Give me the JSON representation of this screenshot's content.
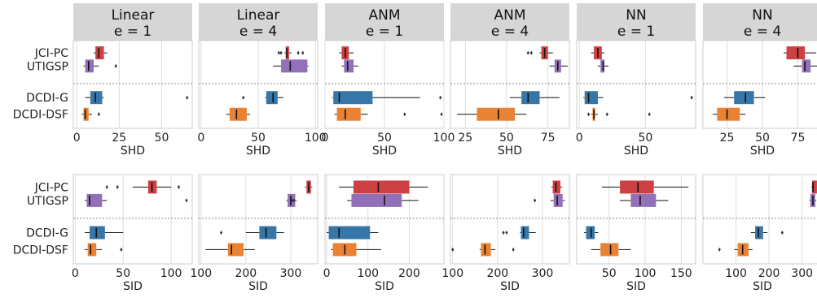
{
  "colors": {
    "JCI-PC": "#cd4043",
    "UTIGSP": "#9271b8",
    "DCDI-G": "#3776a6",
    "DCDI-DSF": "#e98232"
  },
  "chart_data": {
    "type": "box",
    "categories": [
      "JCI-PC",
      "UTIGSP",
      "DCDI-G",
      "DCDI-DSF"
    ],
    "panels": [
      {
        "id": "p0",
        "row": 0,
        "col": 0,
        "title_line1": "Linear",
        "title_line2": "e = 1",
        "xlabel": "SHD",
        "xlim": [
          -2,
          68
        ],
        "xticks": [
          0,
          25,
          50
        ],
        "boxes": [
          {
            "method": "JCI-PC",
            "whislo": 10,
            "q1": 11,
            "med": 13,
            "q3": 16,
            "whishi": 18,
            "fliers": []
          },
          {
            "method": "UTIGSP",
            "whislo": 4,
            "q1": 5,
            "med": 7,
            "q3": 10,
            "whishi": 13,
            "fliers": [
              23
            ]
          },
          {
            "method": "DCDI-G",
            "whislo": 5,
            "q1": 8,
            "med": 11,
            "q3": 15,
            "whishi": 16,
            "fliers": [
              65
            ]
          },
          {
            "method": "DCDI-DSF",
            "whislo": 3,
            "q1": 4,
            "med": 5,
            "q3": 7,
            "whishi": 9,
            "fliers": [
              13
            ]
          }
        ]
      },
      {
        "id": "p1",
        "row": 0,
        "col": 1,
        "title_line1": "Linear",
        "title_line2": "e = 4",
        "xlabel": "SHD",
        "xlim": [
          -2,
          102
        ],
        "xticks": [
          0,
          50,
          100
        ],
        "boxes": [
          {
            "method": "JCI-PC",
            "whislo": 73,
            "q1": 74,
            "med": 75,
            "q3": 77,
            "whishi": 79,
            "fliers": [
              68,
              70,
              85,
              89
            ]
          },
          {
            "method": "UTIGSP",
            "whislo": 63,
            "q1": 70,
            "med": 78,
            "q3": 93,
            "whishi": 94,
            "fliers": []
          },
          {
            "method": "DCDI-G",
            "whislo": 56,
            "q1": 57,
            "med": 63,
            "q3": 67,
            "whishi": 72,
            "fliers": [
              37
            ]
          },
          {
            "method": "DCDI-DSF",
            "whislo": 22,
            "q1": 25,
            "med": 31,
            "q3": 40,
            "whishi": 43,
            "fliers": []
          }
        ]
      },
      {
        "id": "p2",
        "row": 0,
        "col": 2,
        "title_line1": "ANM",
        "title_line2": "e = 1",
        "xlabel": "SHD",
        "xlim": [
          0,
          100
        ],
        "xticks": [
          0,
          50,
          100
        ],
        "boxes": [
          {
            "method": "JCI-PC",
            "whislo": 12,
            "q1": 14,
            "med": 17,
            "q3": 20,
            "whishi": 24,
            "fliers": []
          },
          {
            "method": "UTIGSP",
            "whislo": 14,
            "q1": 16,
            "med": 19,
            "q3": 24,
            "whishi": 28,
            "fliers": []
          },
          {
            "method": "DCDI-G",
            "whislo": 6,
            "q1": 7,
            "med": 12,
            "q3": 40,
            "whishi": 80,
            "fliers": [
              97
            ]
          },
          {
            "method": "DCDI-DSF",
            "whislo": 8,
            "q1": 10,
            "med": 17,
            "q3": 30,
            "whishi": 36,
            "fliers": [
              67,
              98
            ]
          }
        ]
      },
      {
        "id": "p3",
        "row": 0,
        "col": 3,
        "title_line1": "ANM",
        "title_line2": "e = 4",
        "xlabel": "SHD",
        "xlim": [
          16,
          88
        ],
        "xticks": [
          25,
          50,
          75
        ],
        "boxes": [
          {
            "method": "JCI-PC",
            "whislo": 70,
            "q1": 71,
            "med": 73,
            "q3": 75,
            "whishi": 78,
            "fliers": [
              63,
              65
            ]
          },
          {
            "method": "UTIGSP",
            "whislo": 76,
            "q1": 79,
            "med": 81,
            "q3": 83,
            "whishi": 87,
            "fliers": []
          },
          {
            "method": "DCDI-G",
            "whislo": 52,
            "q1": 59,
            "med": 63,
            "q3": 70,
            "whishi": 82,
            "fliers": []
          },
          {
            "method": "DCDI-DSF",
            "whislo": 20,
            "q1": 32,
            "med": 45,
            "q3": 55,
            "whishi": 62,
            "fliers": []
          }
        ]
      },
      {
        "id": "p4",
        "row": 0,
        "col": 4,
        "title_line1": "NN",
        "title_line2": "e = 1",
        "xlabel": "SHD",
        "xlim": [
          -2,
          88
        ],
        "xticks": [
          0,
          50
        ],
        "boxes": [
          {
            "method": "JCI-PC",
            "whislo": 9,
            "q1": 11,
            "med": 14,
            "q3": 17,
            "whishi": 19,
            "fliers": []
          },
          {
            "method": "UTIGSP",
            "whislo": 14,
            "q1": 16,
            "med": 18,
            "q3": 19,
            "whishi": 22,
            "fliers": []
          },
          {
            "method": "DCDI-G",
            "whislo": 3,
            "q1": 4,
            "med": 7,
            "q3": 14,
            "whishi": 18,
            "fliers": [
              85
            ]
          },
          {
            "method": "DCDI-DSF",
            "whislo": 9,
            "q1": 10,
            "med": 11,
            "q3": 12,
            "whishi": 14,
            "fliers": [
              7,
              21,
              53
            ]
          }
        ]
      },
      {
        "id": "p5",
        "row": 0,
        "col": 5,
        "title_line1": "NN",
        "title_line2": "e = 4",
        "xlabel": "SHD",
        "xlim": [
          8,
          92
        ],
        "xticks": [
          25,
          50,
          75
        ],
        "boxes": [
          {
            "method": "JCI-PC",
            "whislo": 65,
            "q1": 67,
            "med": 75,
            "q3": 80,
            "whishi": 88,
            "fliers": []
          },
          {
            "method": "UTIGSP",
            "whislo": 72,
            "q1": 78,
            "med": 80,
            "q3": 84,
            "whishi": 92,
            "fliers": []
          },
          {
            "method": "DCDI-G",
            "whislo": 23,
            "q1": 30,
            "med": 38,
            "q3": 44,
            "whishi": 52,
            "fliers": []
          },
          {
            "method": "DCDI-DSF",
            "whislo": 15,
            "q1": 18,
            "med": 25,
            "q3": 34,
            "whishi": 38,
            "fliers": []
          }
        ]
      },
      {
        "id": "p6",
        "row": 1,
        "col": 0,
        "title_line1": "",
        "title_line2": "",
        "xlabel": "SID",
        "xlim": [
          -2,
          122
        ],
        "xticks": [
          0,
          50,
          100
        ],
        "boxes": [
          {
            "method": "JCI-PC",
            "whislo": 60,
            "q1": 76,
            "med": 80,
            "q3": 85,
            "whishi": 100,
            "fliers": [
              33,
              44,
              108
            ]
          },
          {
            "method": "UTIGSP",
            "whislo": 10,
            "q1": 12,
            "med": 15,
            "q3": 28,
            "whishi": 33,
            "fliers": [
              116
            ]
          },
          {
            "method": "DCDI-G",
            "whislo": 10,
            "q1": 15,
            "med": 22,
            "q3": 31,
            "whishi": 50,
            "fliers": []
          },
          {
            "method": "DCDI-DSF",
            "whislo": 10,
            "q1": 13,
            "med": 16,
            "q3": 22,
            "whishi": 28,
            "fliers": [
              48
            ]
          }
        ]
      },
      {
        "id": "p7",
        "row": 1,
        "col": 1,
        "title_line1": "",
        "title_line2": "",
        "xlabel": "SID",
        "xlim": [
          95,
          360
        ],
        "xticks": [
          100,
          200,
          300
        ],
        "boxes": [
          {
            "method": "JCI-PC",
            "whislo": 332,
            "q1": 335,
            "med": 340,
            "q3": 345,
            "whishi": 348,
            "fliers": []
          },
          {
            "method": "UTIGSP",
            "whislo": 290,
            "q1": 293,
            "med": 300,
            "q3": 310,
            "whishi": 313,
            "fliers": [
              303,
              307
            ]
          },
          {
            "method": "DCDI-G",
            "whislo": 200,
            "q1": 230,
            "med": 245,
            "q3": 268,
            "whishi": 285,
            "fliers": [
              145
            ]
          },
          {
            "method": "DCDI-DSF",
            "whislo": 110,
            "q1": 160,
            "med": 168,
            "q3": 195,
            "whishi": 220,
            "fliers": []
          }
        ]
      },
      {
        "id": "p8",
        "row": 1,
        "col": 2,
        "title_line1": "",
        "title_line2": "",
        "xlabel": "SID",
        "xlim": [
          -4,
          284
        ],
        "xticks": [
          0,
          100,
          200
        ],
        "boxes": [
          {
            "method": "JCI-PC",
            "whislo": 30,
            "q1": 65,
            "med": 125,
            "q3": 200,
            "whishi": 245,
            "fliers": []
          },
          {
            "method": "UTIGSP",
            "whislo": 50,
            "q1": 60,
            "med": 140,
            "q3": 182,
            "whishi": 222,
            "fliers": []
          },
          {
            "method": "DCDI-G",
            "whislo": 0,
            "q1": 5,
            "med": 30,
            "q3": 105,
            "whishi": 125,
            "fliers": []
          },
          {
            "method": "DCDI-DSF",
            "whislo": 10,
            "q1": 15,
            "med": 44,
            "q3": 72,
            "whishi": 132,
            "fliers": []
          }
        ]
      },
      {
        "id": "p9",
        "row": 1,
        "col": 3,
        "title_line1": "",
        "title_line2": "",
        "xlabel": "SID",
        "xlim": [
          95,
          360
        ],
        "xticks": [
          100,
          200,
          300
        ],
        "boxes": [
          {
            "method": "JCI-PC",
            "whislo": 320,
            "q1": 323,
            "med": 330,
            "q3": 340,
            "whishi": 344,
            "fliers": []
          },
          {
            "method": "UTIGSP",
            "whislo": 318,
            "q1": 325,
            "med": 333,
            "q3": 345,
            "whishi": 350,
            "fliers": [
              283
            ]
          },
          {
            "method": "DCDI-G",
            "whislo": 250,
            "q1": 252,
            "med": 258,
            "q3": 270,
            "whishi": 285,
            "fliers": [
              213,
              220
            ]
          },
          {
            "method": "DCDI-DSF",
            "whislo": 160,
            "q1": 163,
            "med": 172,
            "q3": 185,
            "whishi": 195,
            "fliers": [
              100,
              235
            ]
          }
        ]
      },
      {
        "id": "p10",
        "row": 1,
        "col": 4,
        "title_line1": "",
        "title_line2": "",
        "xlabel": "SID",
        "xlim": [
          5,
          170
        ],
        "xticks": [
          50,
          100,
          150
        ],
        "boxes": [
          {
            "method": "JCI-PC",
            "whislo": 40,
            "q1": 65,
            "med": 90,
            "q3": 112,
            "whishi": 160,
            "fliers": []
          },
          {
            "method": "UTIGSP",
            "whislo": 65,
            "q1": 80,
            "med": 93,
            "q3": 115,
            "whishi": 132,
            "fliers": []
          },
          {
            "method": "DCDI-G",
            "whislo": 15,
            "q1": 18,
            "med": 25,
            "q3": 30,
            "whishi": 35,
            "fliers": []
          },
          {
            "method": "DCDI-DSF",
            "whislo": 25,
            "q1": 38,
            "med": 52,
            "q3": 63,
            "whishi": 80,
            "fliers": []
          }
        ]
      },
      {
        "id": "p11",
        "row": 1,
        "col": 5,
        "title_line1": "",
        "title_line2": "",
        "xlabel": "SID",
        "xlim": [
          0,
          360
        ],
        "xticks": [
          100,
          200,
          300
        ],
        "boxes": [
          {
            "method": "JCI-PC",
            "whislo": 328,
            "q1": 330,
            "med": 333,
            "q3": 345,
            "whishi": 348,
            "fliers": []
          },
          {
            "method": "UTIGSP",
            "whislo": 322,
            "q1": 325,
            "med": 333,
            "q3": 340,
            "whishi": 343,
            "fliers": []
          },
          {
            "method": "DCDI-G",
            "whislo": 145,
            "q1": 158,
            "med": 168,
            "q3": 182,
            "whishi": 195,
            "fliers": [
              240
            ]
          },
          {
            "method": "DCDI-DSF",
            "whislo": 95,
            "q1": 105,
            "med": 120,
            "q3": 138,
            "whishi": 150,
            "fliers": [
              50
            ]
          }
        ]
      }
    ]
  }
}
